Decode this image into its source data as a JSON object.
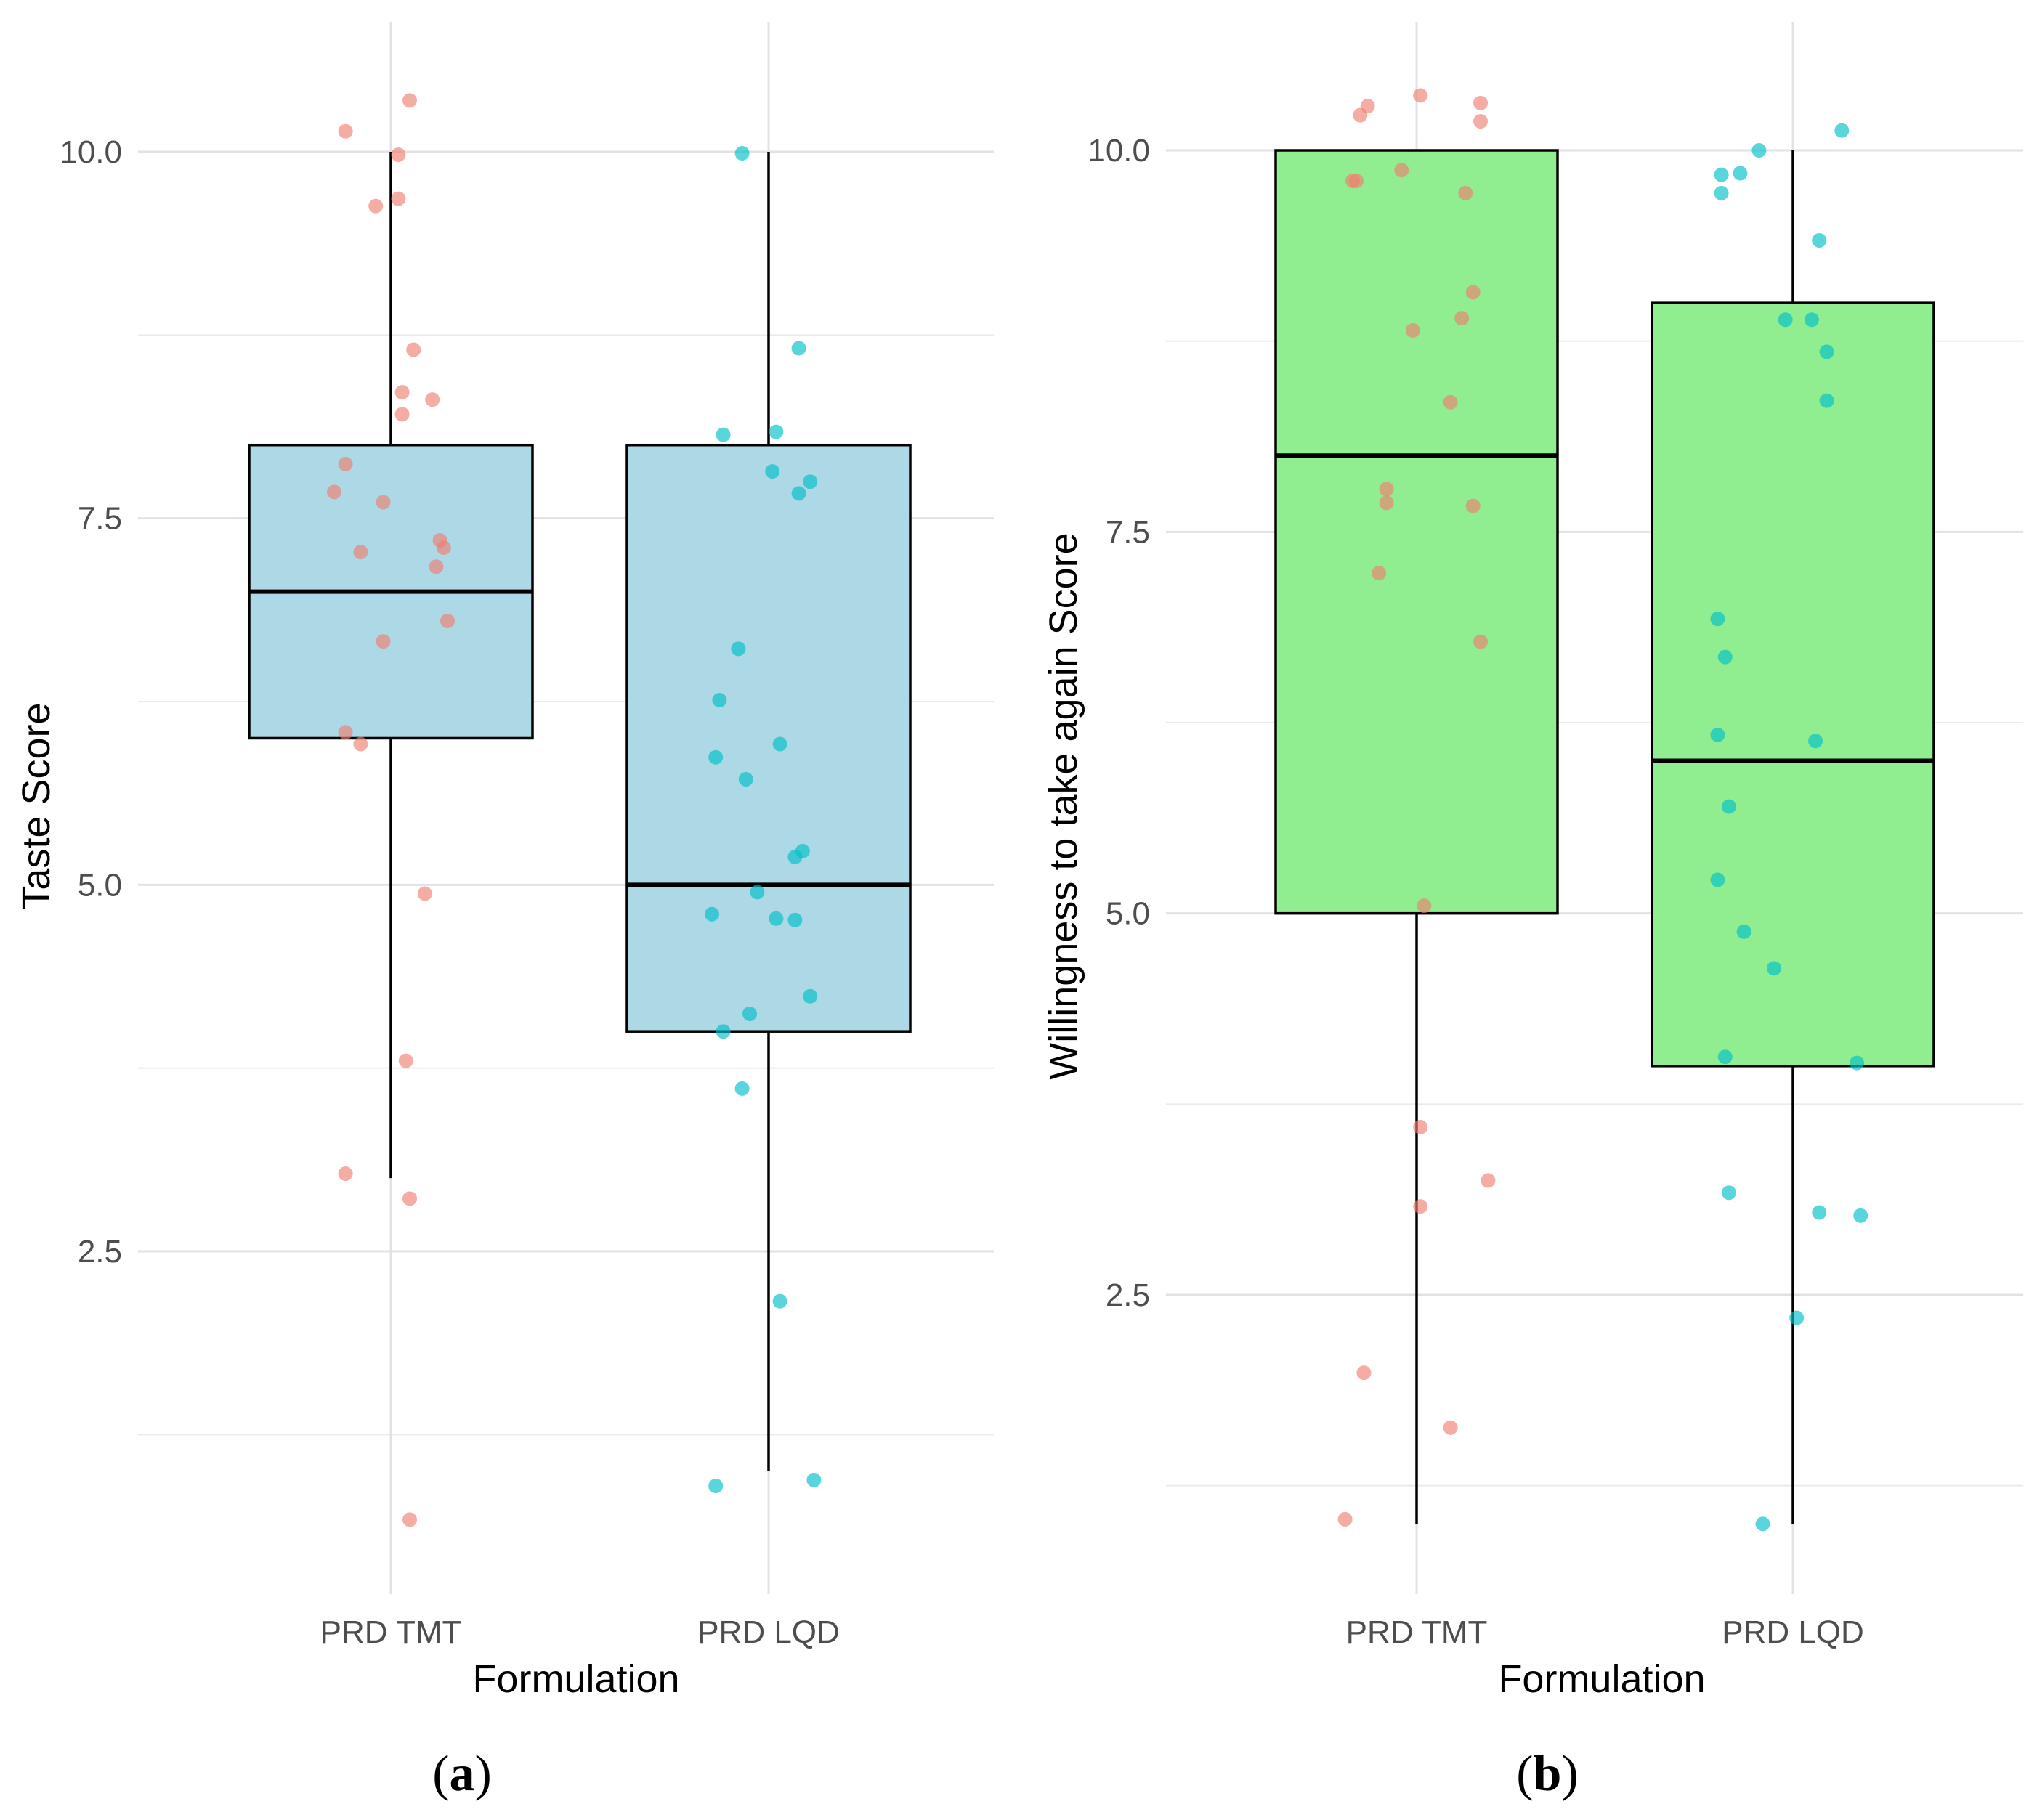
{
  "chart_data": [
    {
      "type": "boxplot",
      "panel_label": "a",
      "xlabel": "Formulation",
      "ylabel": "Taste Score",
      "categories": [
        "PRD TMT",
        "PRD LQD"
      ],
      "yticks": [
        "2.5",
        "5.0",
        "7.5",
        "10.0"
      ],
      "ylim": [
        0.0,
        10.7
      ],
      "box_fill": "#add8e6",
      "point_colors": [
        "#f08070",
        "#00c0c8"
      ],
      "boxes": [
        {
          "category": "PRD TMT",
          "whisker_low": 3.0,
          "q1": 6.0,
          "median": 7.0,
          "q3": 8.0,
          "whisker_high": 10.0
        },
        {
          "category": "PRD LQD",
          "whisker_low": 1.0,
          "q1": 4.0,
          "median": 5.0,
          "q3": 8.0,
          "whisker_high": 10.0
        }
      ],
      "points": [
        [
          {
            "dx": -0.12,
            "y": 10.14
          },
          {
            "dx": 0.05,
            "y": 10.35
          },
          {
            "dx": 0.02,
            "y": 9.98
          },
          {
            "dx": -0.04,
            "y": 9.63
          },
          {
            "dx": 0.02,
            "y": 9.68
          },
          {
            "dx": 0.06,
            "y": 8.65
          },
          {
            "dx": 0.03,
            "y": 8.36
          },
          {
            "dx": 0.03,
            "y": 8.21
          },
          {
            "dx": 0.11,
            "y": 8.31
          },
          {
            "dx": -0.12,
            "y": 7.87
          },
          {
            "dx": -0.15,
            "y": 7.68
          },
          {
            "dx": -0.02,
            "y": 7.61
          },
          {
            "dx": 0.13,
            "y": 7.35
          },
          {
            "dx": -0.08,
            "y": 7.27
          },
          {
            "dx": 0.14,
            "y": 7.3
          },
          {
            "dx": 0.12,
            "y": 7.17
          },
          {
            "dx": 0.15,
            "y": 6.8
          },
          {
            "dx": -0.02,
            "y": 6.66
          },
          {
            "dx": -0.12,
            "y": 6.04
          },
          {
            "dx": -0.08,
            "y": 5.96
          },
          {
            "dx": 0.09,
            "y": 4.94
          },
          {
            "dx": 0.04,
            "y": 3.8
          },
          {
            "dx": -0.12,
            "y": 3.03
          },
          {
            "dx": 0.05,
            "y": 2.86
          },
          {
            "dx": 0.05,
            "y": 0.67
          }
        ],
        [
          {
            "dx": -0.07,
            "y": 9.99
          },
          {
            "dx": 0.08,
            "y": 8.66
          },
          {
            "dx": 0.02,
            "y": 8.09
          },
          {
            "dx": -0.12,
            "y": 8.07
          },
          {
            "dx": 0.01,
            "y": 7.82
          },
          {
            "dx": 0.11,
            "y": 7.75
          },
          {
            "dx": 0.08,
            "y": 7.67
          },
          {
            "dx": -0.08,
            "y": 6.61
          },
          {
            "dx": -0.13,
            "y": 6.26
          },
          {
            "dx": 0.03,
            "y": 5.96
          },
          {
            "dx": -0.14,
            "y": 5.87
          },
          {
            "dx": -0.06,
            "y": 5.72
          },
          {
            "dx": 0.09,
            "y": 5.23
          },
          {
            "dx": 0.07,
            "y": 5.19
          },
          {
            "dx": -0.03,
            "y": 4.95
          },
          {
            "dx": -0.15,
            "y": 4.8
          },
          {
            "dx": 0.02,
            "y": 4.77
          },
          {
            "dx": 0.07,
            "y": 4.76
          },
          {
            "dx": 0.11,
            "y": 4.24
          },
          {
            "dx": -0.05,
            "y": 4.12
          },
          {
            "dx": -0.12,
            "y": 4.0
          },
          {
            "dx": -0.07,
            "y": 3.61
          },
          {
            "dx": 0.03,
            "y": 2.16
          },
          {
            "dx": -0.14,
            "y": 0.9
          },
          {
            "dx": 0.12,
            "y": 0.94
          }
        ]
      ]
    },
    {
      "type": "boxplot",
      "panel_label": "b",
      "xlabel": "Formulation",
      "ylabel": "Willingness to take again Score",
      "categories": [
        "PRD TMT",
        "PRD LQD"
      ],
      "yticks": [
        "2.5",
        "5.0",
        "7.5",
        "10.0"
      ],
      "ylim": [
        0.0,
        10.7
      ],
      "box_fill": "#90ee90",
      "point_colors": [
        "#f08070",
        "#00c0c8"
      ],
      "boxes": [
        {
          "category": "PRD TMT",
          "whisker_low": 1.0,
          "q1": 5.0,
          "median": 8.0,
          "q3": 10.0,
          "whisker_high": 10.0
        },
        {
          "category": "PRD LQD",
          "whisker_low": 1.0,
          "q1": 4.0,
          "median": 6.0,
          "q3": 9.0,
          "whisker_high": 10.0
        }
      ],
      "points": [
        [
          {
            "dx": -0.15,
            "y": 10.23
          },
          {
            "dx": -0.13,
            "y": 10.29
          },
          {
            "dx": 0.01,
            "y": 10.36
          },
          {
            "dx": 0.17,
            "y": 10.31
          },
          {
            "dx": 0.17,
            "y": 10.19
          },
          {
            "dx": -0.17,
            "y": 9.8
          },
          {
            "dx": -0.16,
            "y": 9.8
          },
          {
            "dx": -0.04,
            "y": 9.87
          },
          {
            "dx": 0.13,
            "y": 9.72
          },
          {
            "dx": 0.15,
            "y": 9.07
          },
          {
            "dx": 0.12,
            "y": 8.9
          },
          {
            "dx": -0.01,
            "y": 8.82
          },
          {
            "dx": 0.09,
            "y": 8.35
          },
          {
            "dx": -0.08,
            "y": 7.78
          },
          {
            "dx": -0.08,
            "y": 7.69
          },
          {
            "dx": 0.15,
            "y": 7.67
          },
          {
            "dx": -0.1,
            "y": 7.23
          },
          {
            "dx": 0.17,
            "y": 6.78
          },
          {
            "dx": 0.02,
            "y": 5.05
          },
          {
            "dx": 0.01,
            "y": 3.6
          },
          {
            "dx": 0.19,
            "y": 3.25
          },
          {
            "dx": 0.01,
            "y": 3.08
          },
          {
            "dx": -0.14,
            "y": 1.99
          },
          {
            "dx": 0.09,
            "y": 1.63
          },
          {
            "dx": -0.19,
            "y": 1.03
          }
        ],
        [
          {
            "dx": -0.19,
            "y": 9.84
          },
          {
            "dx": -0.14,
            "y": 9.85
          },
          {
            "dx": -0.09,
            "y": 10.0
          },
          {
            "dx": 0.13,
            "y": 10.13
          },
          {
            "dx": -0.19,
            "y": 9.72
          },
          {
            "dx": 0.07,
            "y": 9.41
          },
          {
            "dx": -0.02,
            "y": 8.89
          },
          {
            "dx": 0.05,
            "y": 8.89
          },
          {
            "dx": 0.09,
            "y": 8.68
          },
          {
            "dx": 0.09,
            "y": 8.36
          },
          {
            "dx": -0.2,
            "y": 6.93
          },
          {
            "dx": -0.18,
            "y": 6.68
          },
          {
            "dx": -0.2,
            "y": 6.17
          },
          {
            "dx": 0.06,
            "y": 6.13
          },
          {
            "dx": -0.17,
            "y": 5.7
          },
          {
            "dx": -0.2,
            "y": 5.22
          },
          {
            "dx": -0.13,
            "y": 4.88
          },
          {
            "dx": -0.05,
            "y": 4.64
          },
          {
            "dx": -0.18,
            "y": 4.06
          },
          {
            "dx": 0.17,
            "y": 4.02
          },
          {
            "dx": -0.17,
            "y": 3.17
          },
          {
            "dx": 0.07,
            "y": 3.04
          },
          {
            "dx": 0.18,
            "y": 3.02
          },
          {
            "dx": 0.01,
            "y": 2.35
          },
          {
            "dx": -0.08,
            "y": 1.0
          }
        ]
      ]
    }
  ]
}
